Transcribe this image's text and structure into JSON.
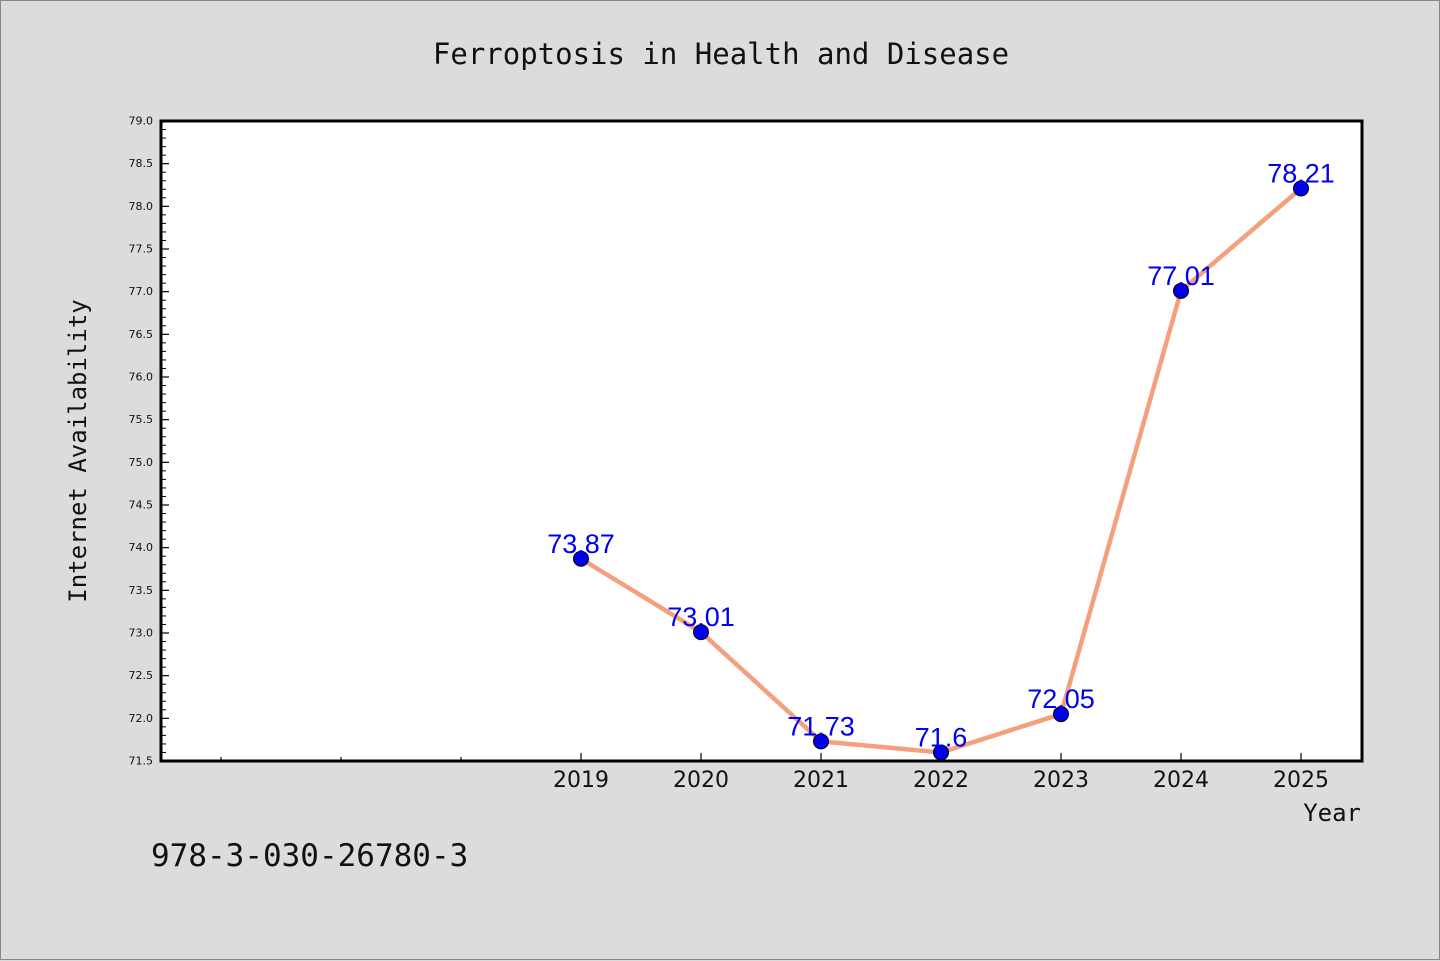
{
  "chart_data": {
    "type": "line",
    "title": "Ferroptosis in Health and Disease",
    "xlabel": "Year",
    "ylabel": "Internet Availability",
    "x": [
      "2019",
      "2020",
      "2021",
      "2022",
      "2023",
      "2024",
      "2025"
    ],
    "series": [
      {
        "values": [
          73.87,
          73.01,
          71.73,
          71.6,
          72.05,
          77.01,
          78.21
        ]
      }
    ],
    "data_labels": [
      "73.87",
      "73.01",
      "71.73",
      "71.6",
      "72.05",
      "77.01",
      "78.21"
    ],
    "ylim": [
      71.5,
      79.0
    ],
    "y_ticks": [
      "71.5",
      "72.0",
      "72.5",
      "73.0",
      "73.5",
      "74.0",
      "74.5",
      "75.0",
      "75.5",
      "76.0",
      "76.5",
      "77.0",
      "77.5",
      "78.0",
      "78.5",
      "79.0"
    ],
    "x_category_slots": 10,
    "x_first_labeled_slot": 3,
    "grid": false,
    "line_color": "#f4a07e",
    "marker_color": "#0000ee",
    "label_color": "#0000ee"
  },
  "footer_text": "978-3-030-26780-3"
}
